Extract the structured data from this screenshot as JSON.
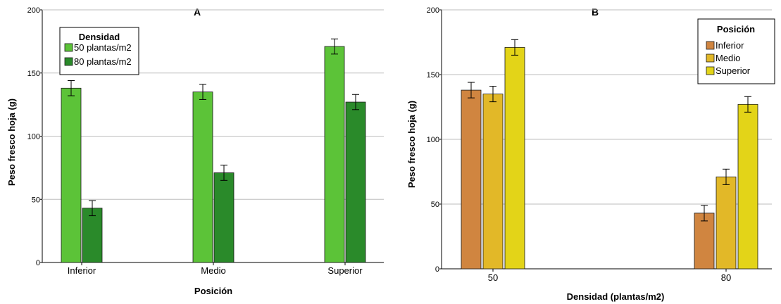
{
  "chart_data": [
    {
      "type": "bar",
      "title": "A",
      "xlabel": "Posición",
      "ylabel": "Peso fresco hoja (g)",
      "ylim": [
        0,
        200
      ],
      "yticks": [
        0,
        50,
        100,
        150,
        200
      ],
      "grid": true,
      "categories": [
        "Inferior",
        "Medio",
        "Superior"
      ],
      "legend": {
        "title": "Densidad",
        "placement": "top-left"
      },
      "series": [
        {
          "name": "50 plantas/m2",
          "color": "#5cc338",
          "values": [
            138,
            135,
            171
          ],
          "error": [
            6,
            6,
            6
          ]
        },
        {
          "name": "80 plantas/m2",
          "color": "#2a8a2a",
          "values": [
            43,
            71,
            127
          ],
          "error": [
            6,
            6,
            6
          ]
        }
      ]
    },
    {
      "type": "bar",
      "title": "B",
      "xlabel": "Densidad (plantas/m2)",
      "ylabel": "Peso fresco hoja (g)",
      "ylim": [
        0,
        200
      ],
      "yticks": [
        0,
        50,
        100,
        150,
        200
      ],
      "grid": true,
      "categories": [
        "50",
        "80"
      ],
      "legend": {
        "title": "Posición",
        "placement": "top-right"
      },
      "series": [
        {
          "name": "Inferior",
          "color": "#d08540",
          "values": [
            138,
            43
          ],
          "error": [
            6,
            6
          ]
        },
        {
          "name": "Medio",
          "color": "#e2b828",
          "values": [
            135,
            71
          ],
          "error": [
            6,
            6
          ]
        },
        {
          "name": "Superior",
          "color": "#e3d418",
          "values": [
            171,
            127
          ],
          "error": [
            6,
            6
          ]
        }
      ]
    }
  ]
}
